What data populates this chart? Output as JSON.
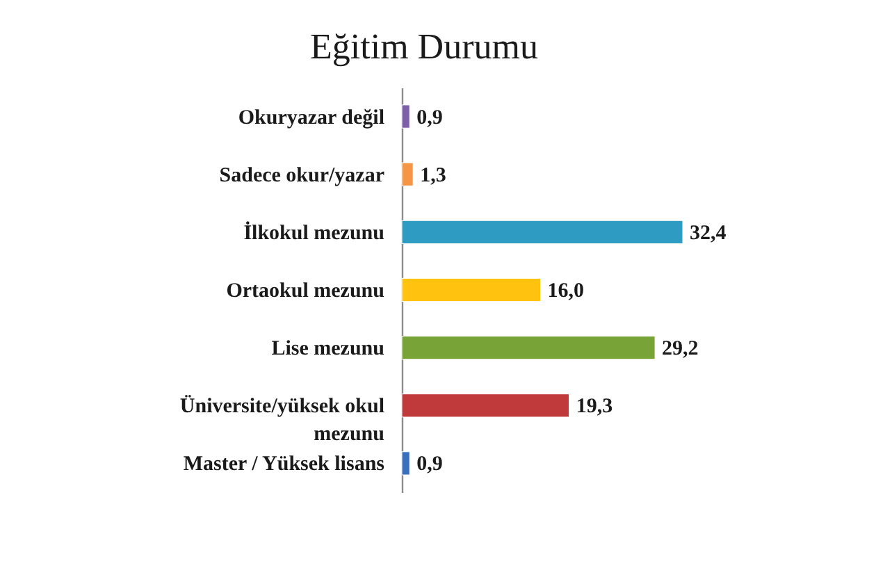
{
  "chart_data": {
    "type": "bar",
    "orientation": "horizontal",
    "title": "Eğitim Durumu",
    "categories": [
      "Okuryazar değil",
      "Sadece okur/yazar",
      "İlkokul mezunu",
      "Ortaokul mezunu",
      "Lise mezunu",
      "Üniversite/yüksek okul mezunu",
      "Master / Yüksek lisans"
    ],
    "values": [
      0.9,
      1.3,
      32.4,
      16.0,
      29.2,
      19.3,
      0.9
    ],
    "colors": [
      "#7e60a8",
      "#f59646",
      "#2e9cc2",
      "#ffc20e",
      "#78a336",
      "#c0393b",
      "#3a6fbd"
    ],
    "value_labels": [
      "0,9",
      "1,3",
      "32,4",
      "16,0",
      "29,2",
      "19,3",
      "0,9"
    ],
    "tick_labels": "y"
  }
}
